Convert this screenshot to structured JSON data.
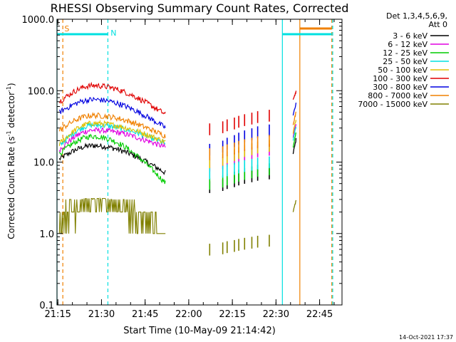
{
  "chart_data": {
    "type": "line",
    "title": "RHESSI Observing Summary Count Rates, Corrected",
    "xlabel": "Start Time (10-May-09 21:14:42)",
    "ylabel_main": "Corrected Count Rate (s",
    "ylabel_sup1": "-1",
    "ylabel_mid": " detector",
    "ylabel_sup2": "-1",
    "ylabel_end": ")",
    "y_scale": "log",
    "ylim": [
      0.1,
      1000
    ],
    "xlim_minutes": [
      0,
      98
    ],
    "x_ticks": [
      {
        "t": 0.3,
        "label": "21:15"
      },
      {
        "t": 15.3,
        "label": "21:30"
      },
      {
        "t": 30.3,
        "label": "21:45"
      },
      {
        "t": 45.3,
        "label": "22:00"
      },
      {
        "t": 60.3,
        "label": "22:15"
      },
      {
        "t": 75.3,
        "label": "22:30"
      },
      {
        "t": 90.3,
        "label": "22:45"
      }
    ],
    "y_ticks": [
      {
        "v": 1000,
        "label": "1000.0"
      },
      {
        "v": 100,
        "label": "100.0"
      },
      {
        "v": 10,
        "label": "10.0"
      },
      {
        "v": 1,
        "label": "1.0"
      },
      {
        "v": 0.1,
        "label": "0.1"
      }
    ],
    "legend_header": [
      "Det 1,3,4,5,6,9,",
      "Att 0"
    ],
    "series": [
      {
        "name": "3 - 6 keV",
        "color": "#000000",
        "seg1": {
          "start": 11,
          "peak": 17,
          "end": 7
        },
        "pass2": [
          4.5,
          7
        ],
        "tail": [
          13,
          22
        ]
      },
      {
        "name": "6 - 12 keV",
        "color": "#e000e0",
        "seg1": {
          "start": 15,
          "peak": 28,
          "end": 16
        },
        "pass2": [
          9,
          15
        ],
        "tail": [
          22,
          38
        ]
      },
      {
        "name": "12 - 25 keV",
        "color": "#00cc00",
        "seg1": {
          "start": 13,
          "peak": 23,
          "end": 5
        },
        "pass2": [
          5,
          8
        ],
        "tail": [
          16,
          27
        ]
      },
      {
        "name": "25 - 50 keV",
        "color": "#00e0e0",
        "seg1": {
          "start": 17,
          "peak": 33,
          "end": 18
        },
        "pass2": [
          7,
          10
        ],
        "tail": [
          20,
          33
        ]
      },
      {
        "name": "50 - 100 keV",
        "color": "#e0c000",
        "seg1": {
          "start": 18,
          "peak": 35,
          "end": 19
        },
        "pass2": [
          10,
          17
        ],
        "tail": [
          25,
          44
        ]
      },
      {
        "name": "100 - 300 keV",
        "color": "#e00000",
        "seg1": {
          "start": 70,
          "peak": 118,
          "end": 46
        },
        "pass2": [
          29,
          45
        ],
        "tail": [
          75,
          100
        ]
      },
      {
        "name": "300 - 800 keV",
        "color": "#0000e0",
        "seg1": {
          "start": 50,
          "peak": 75,
          "end": 30
        },
        "pass2": [
          15,
          28
        ],
        "tail": [
          45,
          70
        ]
      },
      {
        "name": "800 - 7000 keV",
        "color": "#f08000",
        "seg1": {
          "start": 28,
          "peak": 45,
          "end": 23
        },
        "pass2": [
          13,
          20
        ],
        "tail": [
          33,
          52
        ]
      },
      {
        "name": "7000 - 15000 keV",
        "color": "#808000",
        "seg1": {
          "start": 1.8,
          "peak": 3,
          "end": 1
        },
        "pass2": [
          0.6,
          0.8
        ],
        "tail": [
          2,
          3
        ]
      }
    ],
    "pass2_times": [
      52.5,
      57,
      58.5,
      61,
      62.5,
      64.5,
      67,
      69,
      73
    ],
    "tail_window": [
      81.2,
      82.2
    ],
    "flags": [
      {
        "code": "S",
        "color": "#f08000",
        "t_start": 0.5,
        "t_end": 2,
        "t_marker": 2.3
      },
      {
        "code": "N",
        "color": "#00e0e0",
        "t_start": 0,
        "t_end": 17.5,
        "t_marker": 18.2
      }
    ],
    "flag_bars_right": [
      {
        "color": "#00e0e0",
        "t_start": 77.5,
        "t_end": 94.5
      },
      {
        "color": "#f08000",
        "t_start": 83.5,
        "t_end": 94.5
      }
    ],
    "vlines": [
      {
        "t": 0,
        "color": "#00e0e0",
        "style": "solid"
      },
      {
        "t": 2,
        "color": "#f08000",
        "style": "dashed"
      },
      {
        "t": 17.5,
        "color": "#00e0e0",
        "style": "dashed"
      },
      {
        "t": 77.5,
        "color": "#00e0e0",
        "style": "solid"
      },
      {
        "t": 83.5,
        "color": "#f08000",
        "style": "solid"
      },
      {
        "t": 94.5,
        "color": "#f08000",
        "style": "dashed"
      },
      {
        "t": 94.8,
        "color": "#00e0e0",
        "style": "dashed"
      }
    ],
    "footer": "14-Oct-2021 17:37"
  }
}
